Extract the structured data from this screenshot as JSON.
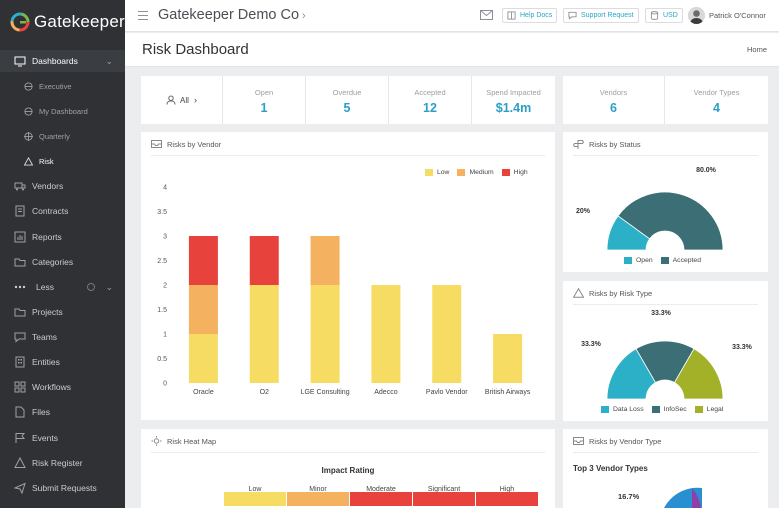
{
  "app": {
    "name": "Gatekeeper"
  },
  "sidebar": {
    "items": [
      {
        "label": "Dashboards",
        "icon": "monitor-icon"
      },
      {
        "label": "Executive",
        "icon": "globe-icon"
      },
      {
        "label": "My Dashboard",
        "icon": "globe-icon"
      },
      {
        "label": "Quarterly",
        "icon": "crosshair-icon"
      },
      {
        "label": "Risk",
        "icon": "warning-icon"
      },
      {
        "label": "Vendors",
        "icon": "truck-icon"
      },
      {
        "label": "Contracts",
        "icon": "document-icon"
      },
      {
        "label": "Reports",
        "icon": "chart-icon"
      },
      {
        "label": "Categories",
        "icon": "folder-icon"
      },
      {
        "label": "Less",
        "icon": "dots-icon"
      },
      {
        "label": "Projects",
        "icon": "folder-icon"
      },
      {
        "label": "Teams",
        "icon": "chat-icon"
      },
      {
        "label": "Entities",
        "icon": "building-icon"
      },
      {
        "label": "Workflows",
        "icon": "workflow-icon"
      },
      {
        "label": "Files",
        "icon": "file-icon"
      },
      {
        "label": "Events",
        "icon": "flag-icon"
      },
      {
        "label": "Risk Register",
        "icon": "warning-icon"
      },
      {
        "label": "Submit Requests",
        "icon": "send-icon"
      }
    ]
  },
  "topbar": {
    "company": "Gatekeeper Demo Co",
    "help_docs": "Help Docs",
    "support_request": "Support Request",
    "currency": "USD",
    "user_name": "Patrick O'Connor"
  },
  "page": {
    "title": "Risk Dashboard",
    "breadcrumb": "Home"
  },
  "stats": {
    "filter_label": "All",
    "items": [
      {
        "label": "Open",
        "value": "1"
      },
      {
        "label": "Overdue",
        "value": "5"
      },
      {
        "label": "Accepted",
        "value": "12"
      },
      {
        "label": "Spend Impacted",
        "value": "$1.4m"
      }
    ],
    "vendor_items": [
      {
        "label": "Vendors",
        "value": "6"
      },
      {
        "label": "Vendor Types",
        "value": "4"
      }
    ]
  },
  "colors": {
    "low": "#f7dc63",
    "medium": "#f4b15f",
    "high": "#e8423d",
    "open": "#2cb0c8",
    "accepted": "#3c6f75",
    "data_loss": "#2cb0c8",
    "infosec": "#3c6f75",
    "legal": "#a3b128",
    "purple": "#8e3fa8",
    "blue": "#2a8fd1",
    "accent": "#2b9fc7"
  },
  "panels": {
    "risks_by_vendor": "Risks by Vendor",
    "risks_by_status": "Risks by Status",
    "risks_by_type": "Risks by Risk Type",
    "heat_map": "Risk Heat Map",
    "risks_by_vendor_type": "Risks by Vendor Type"
  },
  "chart_data": [
    {
      "type": "bar",
      "title": "Risks by Vendor",
      "stacked": true,
      "categories": [
        "Oracle",
        "O2",
        "LGE Consulting",
        "Adecco",
        "Pavlo Vendor",
        "British Airways"
      ],
      "series": [
        {
          "name": "Low",
          "values": [
            1,
            2,
            2,
            2,
            2,
            1
          ]
        },
        {
          "name": "Medium",
          "values": [
            1,
            0,
            1,
            0,
            0,
            0
          ]
        },
        {
          "name": "High",
          "values": [
            1,
            1,
            0,
            0,
            0,
            0
          ]
        }
      ],
      "yticks": [
        "0",
        "0.5",
        "1",
        "1.5",
        "2",
        "2.5",
        "3",
        "3.5",
        "4"
      ],
      "ylim": [
        0,
        4
      ],
      "legend": "top-right"
    },
    {
      "type": "pie",
      "title": "Risks by Status",
      "variant": "half-donut",
      "categories": [
        "Open",
        "Accepted"
      ],
      "values": [
        20,
        80
      ],
      "labels": [
        "20%",
        "80.0%"
      ]
    },
    {
      "type": "pie",
      "title": "Risks by Risk Type",
      "variant": "half-donut",
      "categories": [
        "Data Loss",
        "InfoSec",
        "Legal"
      ],
      "values": [
        33.3,
        33.3,
        33.3
      ],
      "labels": [
        "33.3%",
        "33.3%",
        "33.3%"
      ]
    },
    {
      "type": "heatmap",
      "title": "Risk Heat Map",
      "x_title": "Impact Rating",
      "columns": [
        "Low",
        "Minor",
        "Moderate",
        "Significant",
        "High"
      ]
    },
    {
      "type": "pie",
      "title": "Risks by Vendor Type",
      "subtitle": "Top 3 Vendor Types",
      "labels": [
        "16.7%"
      ]
    }
  ]
}
